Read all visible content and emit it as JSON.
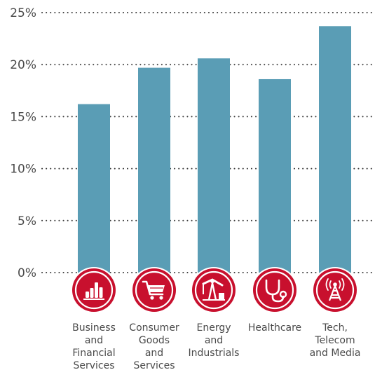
{
  "chart_data": {
    "type": "bar",
    "categories": [
      [
        "Business",
        "and",
        "Financial",
        "Services"
      ],
      [
        "Consumer",
        "Goods",
        "and",
        "Services"
      ],
      [
        "Energy",
        "and",
        "Industrials"
      ],
      [
        "Healthcare"
      ],
      [
        "Tech,",
        "Telecom",
        "and Media"
      ]
    ],
    "category_icons": [
      "bar-chart-icon",
      "shopping-cart-icon",
      "oil-pump-icon",
      "stethoscope-icon",
      "radio-tower-icon"
    ],
    "values": [
      16.2,
      19.7,
      20.6,
      18.6,
      23.7
    ],
    "ylim": [
      0,
      25
    ],
    "yticks": [
      0,
      5,
      10,
      15,
      20,
      25
    ],
    "ytick_labels": [
      "0%",
      "5%",
      "10%",
      "15%",
      "20%",
      "25%"
    ],
    "grid": "dotted",
    "bar_color": "#5a9db5",
    "icon_color": "#c8102e",
    "title": "",
    "xlabel": "",
    "ylabel": ""
  }
}
